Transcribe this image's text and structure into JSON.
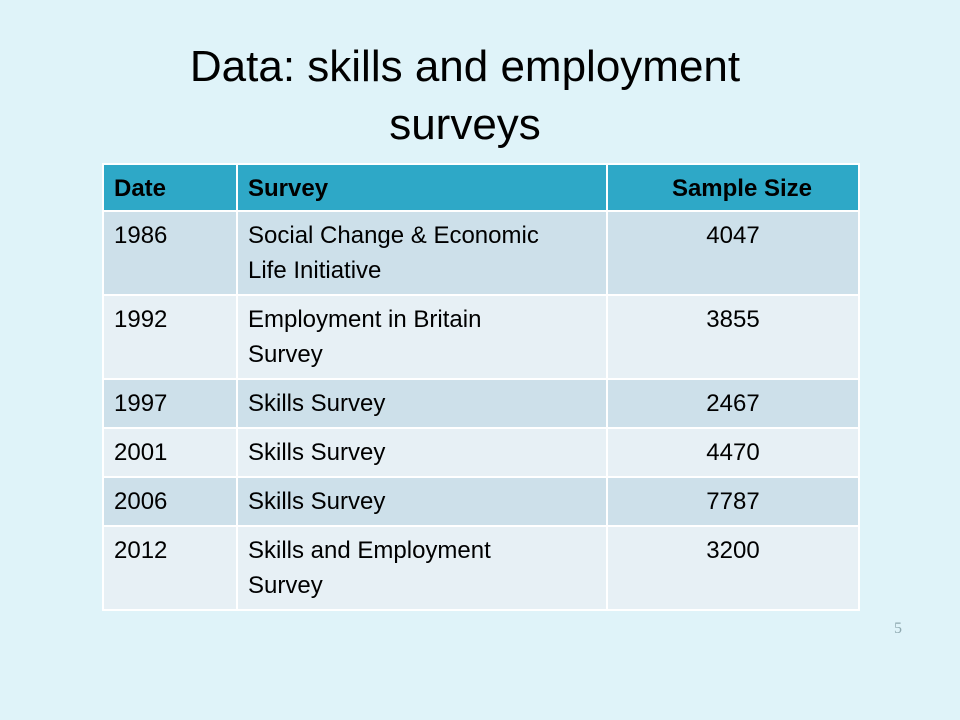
{
  "slide": {
    "title_line1": "Data: skills and employment",
    "title_line2": "surveys",
    "page_number": "5"
  },
  "table": {
    "headers": [
      "Date",
      "Survey",
      "Sample Size"
    ],
    "rows": [
      {
        "date": "1986",
        "survey_line1": "Social Change & Economic",
        "survey_line2": "Life Initiative",
        "sample_size": "4047"
      },
      {
        "date": "1992",
        "survey_line1": "Employment in Britain",
        "survey_line2": "Survey",
        "sample_size": "3855"
      },
      {
        "date": "1997",
        "survey_line1": "Skills Survey",
        "survey_line2": "",
        "sample_size": "2467"
      },
      {
        "date": "2001",
        "survey_line1": "Skills Survey",
        "survey_line2": "",
        "sample_size": "4470"
      },
      {
        "date": "2006",
        "survey_line1": "Skills Survey",
        "survey_line2": "",
        "sample_size": "7787"
      },
      {
        "date": "2012",
        "survey_line1": "Skills and Employment",
        "survey_line2": "Survey",
        "sample_size": "3200"
      }
    ]
  },
  "colors": {
    "background": "#dff3f9",
    "header_fill": "#2ea8c7",
    "row_odd_fill": "#cde0ea",
    "row_even_fill": "#e7f0f5"
  }
}
